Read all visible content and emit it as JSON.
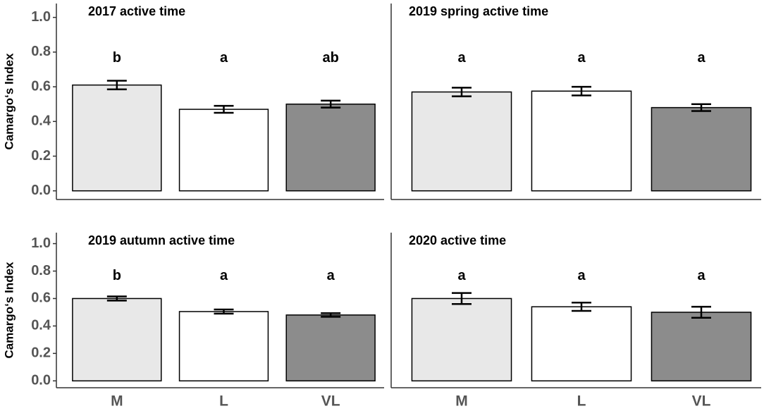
{
  "chart_data": [
    {
      "type": "bar",
      "title": "2017 active time",
      "ylabel": "Camargo‘s Index",
      "categories": [
        null,
        null,
        null
      ],
      "values": [
        0.61,
        0.47,
        0.5
      ],
      "errors": [
        0.025,
        0.02,
        0.02
      ],
      "letters": [
        "b",
        "a",
        "ab"
      ],
      "colors": [
        "#e8e8e8",
        "#ffffff",
        "#8c8c8c"
      ],
      "ylim": [
        -0.05,
        1.08
      ],
      "yticks": [
        {
          "value": 0,
          "label": "0.0"
        },
        {
          "value": 0.2,
          "label": "0.2"
        },
        {
          "value": 0.4,
          "label": "0.4"
        },
        {
          "value": 0.6,
          "label": "0.6"
        },
        {
          "value": 0.8,
          "label": "0.8"
        },
        {
          "value": 1,
          "label": "1.0"
        }
      ]
    },
    {
      "type": "bar",
      "title": "2019 spring active time",
      "categories": [
        null,
        null,
        null
      ],
      "values": [
        0.57,
        0.575,
        0.48
      ],
      "errors": [
        0.025,
        0.025,
        0.02
      ],
      "letters": [
        "a",
        "a",
        "a"
      ],
      "colors": [
        "#e8e8e8",
        "#ffffff",
        "#8c8c8c"
      ],
      "ylim": [
        -0.05,
        1.08
      ]
    },
    {
      "type": "bar",
      "title": "2019 autumn active time",
      "ylabel": "Camargo‘s Index",
      "categories": [
        "M",
        "L",
        "VL"
      ],
      "values": [
        0.6,
        0.505,
        0.48
      ],
      "errors": [
        0.015,
        0.015,
        0.013
      ],
      "letters": [
        "b",
        "a",
        "a"
      ],
      "colors": [
        "#e8e8e8",
        "#ffffff",
        "#8c8c8c"
      ],
      "ylim": [
        -0.05,
        1.08
      ],
      "yticks": [
        {
          "value": 0,
          "label": "0.0"
        },
        {
          "value": 0.2,
          "label": "0.2"
        },
        {
          "value": 0.4,
          "label": "0.4"
        },
        {
          "value": 0.6,
          "label": "0.6"
        },
        {
          "value": 0.8,
          "label": "0.8"
        },
        {
          "value": 1,
          "label": "1.0"
        }
      ]
    },
    {
      "type": "bar",
      "title": "2020 active time",
      "categories": [
        "M",
        "L",
        "VL"
      ],
      "values": [
        0.6,
        0.54,
        0.5
      ],
      "errors": [
        0.04,
        0.03,
        0.04
      ],
      "letters": [
        "a",
        "a",
        "a"
      ],
      "colors": [
        "#e8e8e8",
        "#ffffff",
        "#8c8c8c"
      ],
      "ylim": [
        -0.05,
        1.08
      ]
    }
  ]
}
